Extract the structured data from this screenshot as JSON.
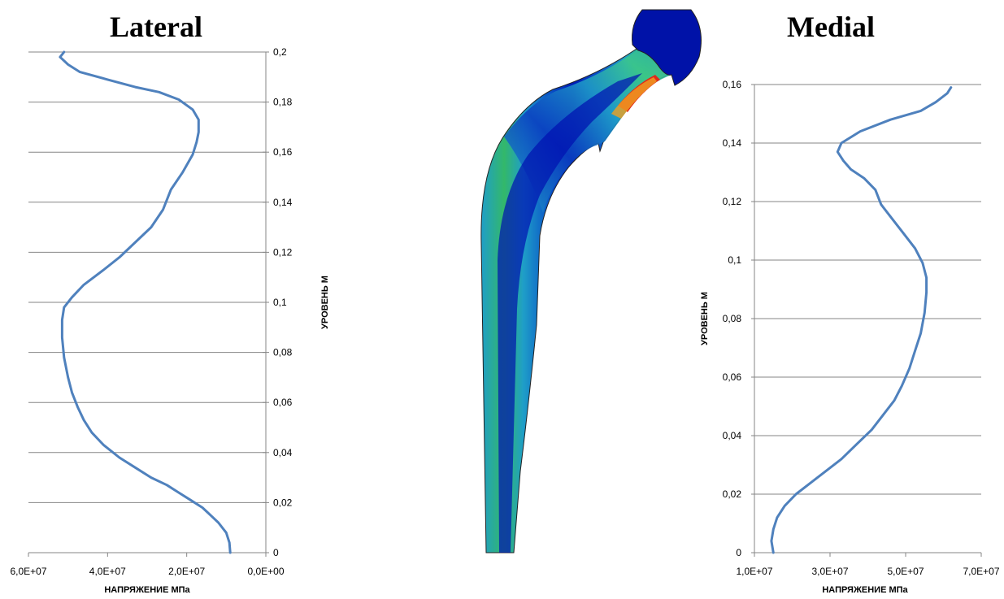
{
  "chart_data": [
    {
      "type": "line",
      "title": "Lateral",
      "xlabel": "НАПРЯЖЕНИЕ МПа",
      "ylabel": "УРОВЕНЬ М",
      "xlim": [
        0,
        60000000
      ],
      "x_reversed": true,
      "ylim": [
        0,
        0.2
      ],
      "xticks": [
        "6,0E+07",
        "4,0E+07",
        "2,0E+07",
        "0,0E+00"
      ],
      "yticks": [
        "0,2",
        "0,18",
        "0,16",
        "0,14",
        "0,12",
        "0,1",
        "0,08",
        "0,06",
        "0,04",
        "0,02",
        "0"
      ],
      "grid": "horizontal",
      "line_color": "#4f81bd",
      "series": [
        {
          "x": [
            9000000,
            9200000,
            10000000,
            12000000,
            14000000,
            16000000,
            19000000,
            22000000,
            25000000,
            29000000,
            33000000,
            37000000,
            41000000,
            44000000,
            46000000,
            47500000,
            49000000,
            50000000,
            51000000,
            51500000,
            51500000,
            51000000,
            49000000,
            46000000,
            41000000,
            37000000,
            33000000,
            29000000,
            26000000,
            24000000,
            21000000,
            18500000,
            17500000,
            17000000,
            17000000,
            18500000,
            22000000,
            27000000,
            33000000,
            40000000,
            47000000,
            50000000,
            52000000,
            51000000
          ],
          "y": [
            0,
            0.004,
            0.008,
            0.012,
            0.015,
            0.018,
            0.021,
            0.024,
            0.027,
            0.03,
            0.034,
            0.038,
            0.043,
            0.048,
            0.053,
            0.058,
            0.064,
            0.07,
            0.078,
            0.086,
            0.093,
            0.098,
            0.102,
            0.107,
            0.113,
            0.118,
            0.124,
            0.13,
            0.137,
            0.145,
            0.152,
            0.159,
            0.164,
            0.168,
            0.173,
            0.177,
            0.181,
            0.184,
            0.186,
            0.189,
            0.192,
            0.195,
            0.198,
            0.2
          ]
        }
      ]
    },
    {
      "type": "line",
      "title": "Medial",
      "xlabel": "НАПРЯЖЕНИЕ МПа",
      "ylabel": "УРОВЕНЬ М",
      "xlim": [
        10000000,
        70000000
      ],
      "ylim": [
        0,
        0.16
      ],
      "xticks": [
        "1,0E+07",
        "3,0E+07",
        "5,0E+07",
        "7,0E+07"
      ],
      "yticks": [
        "0,16",
        "0,14",
        "0,12",
        "0,1",
        "0,08",
        "0,06",
        "0,04",
        "0,02",
        "0"
      ],
      "grid": "horizontal",
      "line_color": "#4f81bd",
      "series": [
        {
          "x": [
            15000000,
            14500000,
            15000000,
            16000000,
            18000000,
            21000000,
            25000000,
            29000000,
            33000000,
            37000000,
            41000000,
            44000000,
            47000000,
            49000000,
            51000000,
            52500000,
            54000000,
            55000000,
            55500000,
            55500000,
            54500000,
            52500000,
            49500000,
            46500000,
            43500000,
            42000000,
            39000000,
            35500000,
            33500000,
            32000000,
            33000000,
            38000000,
            46000000,
            54000000,
            58000000,
            61000000,
            62000000
          ],
          "y": [
            0,
            0.004,
            0.008,
            0.012,
            0.016,
            0.02,
            0.024,
            0.028,
            0.032,
            0.037,
            0.042,
            0.047,
            0.052,
            0.057,
            0.063,
            0.069,
            0.075,
            0.082,
            0.089,
            0.094,
            0.099,
            0.104,
            0.109,
            0.114,
            0.119,
            0.124,
            0.128,
            0.131,
            0.134,
            0.137,
            0.14,
            0.144,
            0.148,
            0.151,
            0.154,
            0.157,
            0.159
          ]
        }
      ]
    }
  ]
}
